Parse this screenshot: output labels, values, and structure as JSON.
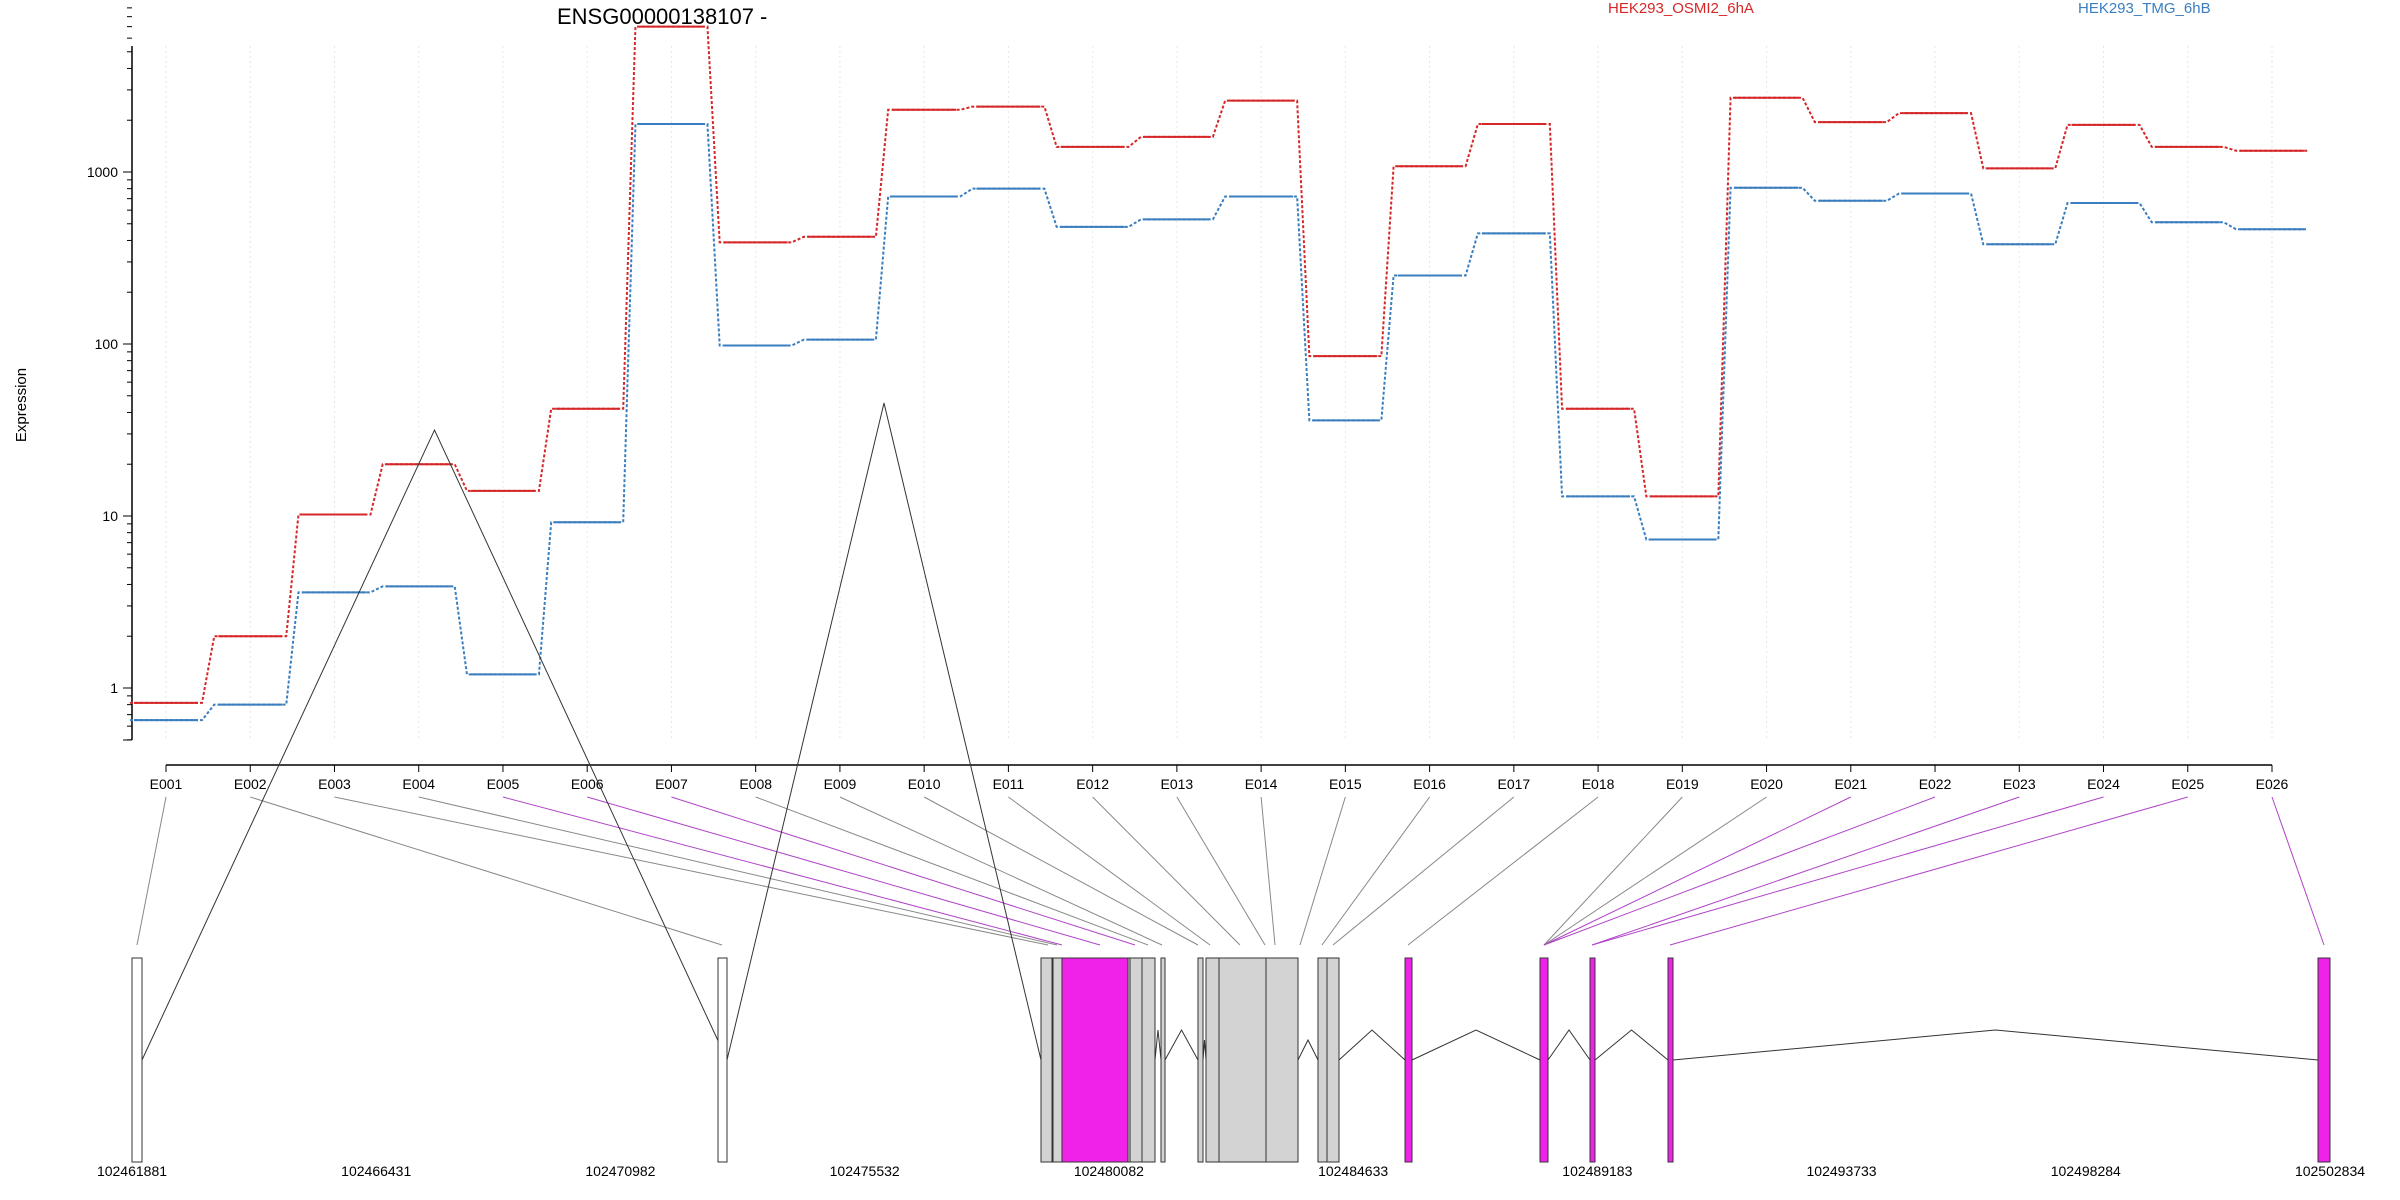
{
  "chart_data": {
    "type": "line",
    "title": "ENSG00000138107 -",
    "xlabel": "",
    "ylabel": "Expression",
    "y_scale": "log",
    "ylim": [
      0.45,
      9000
    ],
    "y_ticks": [
      1,
      10,
      100,
      1000
    ],
    "y_tick_labels": [
      "1",
      "10",
      "100",
      "1000"
    ],
    "grid": "vertical dotted lines at each exon",
    "legend_position": "top-right",
    "categories": [
      "E001",
      "E002",
      "E003",
      "E004",
      "E005",
      "E006",
      "E007",
      "E008",
      "E009",
      "E010",
      "E011",
      "E012",
      "E013",
      "E014",
      "E015",
      "E016",
      "E017",
      "E018",
      "E019",
      "E020",
      "E021",
      "E022",
      "E023",
      "E024",
      "E025",
      "E026"
    ],
    "series": [
      {
        "name": "HEK293_OSMI2_6hA",
        "color": "#d62728",
        "values": [
          0.82,
          2.0,
          10.2,
          20.0,
          14.0,
          42,
          7000,
          390,
          420,
          2300,
          2400,
          1400,
          1600,
          2600,
          85,
          1080,
          1900,
          42,
          13,
          2700,
          1950,
          2200,
          1050,
          1880,
          1400,
          1330
        ]
      },
      {
        "name": "HEK293_TMG_6hB",
        "color": "#3a7ebf",
        "values": [
          0.65,
          0.8,
          3.6,
          3.9,
          1.2,
          9.2,
          1900,
          98,
          106,
          720,
          800,
          480,
          530,
          720,
          36,
          250,
          440,
          13,
          7.3,
          810,
          680,
          750,
          380,
          660,
          510,
          465
        ]
      }
    ],
    "gene_model": {
      "genomic_ticks": [
        "102461881",
        "102466431",
        "102470982",
        "102475532",
        "102480082",
        "102484633",
        "102489183",
        "102493733",
        "102498284",
        "102502834"
      ],
      "colors": {
        "constitutive": "#d3d3d3",
        "differential": "#f021e8",
        "unexpressed": "#ffffff",
        "connector_gray": "#888888",
        "connector_purple": "#b044c8"
      },
      "exon_status": [
        "unexpressed",
        "gray",
        "gray",
        "gray",
        "differential",
        "differential",
        "differential",
        "gray",
        "gray",
        "gray",
        "gray",
        "gray",
        "gray",
        "gray",
        "gray",
        "gray",
        "gray",
        "gray",
        "gray",
        "gray",
        "differential",
        "differential",
        "differential",
        "differential",
        "differential",
        "differential"
      ]
    }
  }
}
